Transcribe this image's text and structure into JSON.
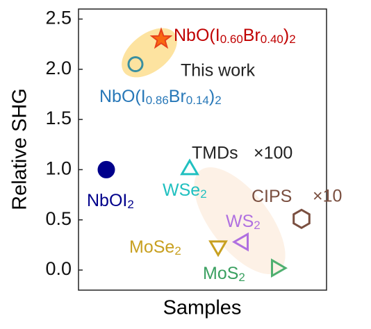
{
  "chart_data": {
    "type": "scatter",
    "ylabel": "Relative SHG",
    "xlabel": "Samples",
    "ylim": [
      -0.2,
      2.6
    ],
    "yticks": [
      {
        "value": 0,
        "label": "0.0"
      },
      {
        "value": 0.5,
        "label": "0.5"
      },
      {
        "value": 1,
        "label": "1.0"
      },
      {
        "value": 1.5,
        "label": "1.5"
      },
      {
        "value": 2,
        "label": "2.0"
      },
      {
        "value": 2.5,
        "label": "2.5"
      }
    ],
    "categories": [
      null,
      null,
      null,
      null,
      null,
      null,
      null,
      null
    ],
    "points": [
      {
        "label": [
          "NbOI",
          "2"
        ],
        "value": 1.0,
        "marker": "circle",
        "filled": true,
        "color": "#00008b",
        "label_color": "#00008b"
      },
      {
        "label": [
          "NbO(I",
          "0.86",
          "Br",
          "0.14",
          ")",
          "2"
        ],
        "value": 2.05,
        "marker": "circle",
        "filled": false,
        "color": "#3a8fa0",
        "label_color": "#2878b8"
      },
      {
        "label": [
          "NbO(I",
          "0.60",
          "Br",
          "0.40",
          ")",
          "2"
        ],
        "value": 2.3,
        "marker": "star",
        "filled": true,
        "color": "#e8401a",
        "label_color": "#c00000"
      },
      {
        "label": [
          "WSe",
          "2"
        ],
        "value": 1.0,
        "marker": "triangle-up",
        "filled": false,
        "color": "#20c0c0",
        "label_color": "#20c0c0"
      },
      {
        "label": [
          "MoSe",
          "2"
        ],
        "value": 0.24,
        "marker": "triangle-down",
        "filled": false,
        "color": "#c8a020",
        "label_color": "#c8a020"
      },
      {
        "label": [
          "WS",
          "2"
        ],
        "value": 0.28,
        "marker": "triangle-left",
        "filled": false,
        "color": "#b070e0",
        "label_color": "#b070e0"
      },
      {
        "label": [
          "MoS",
          "2"
        ],
        "value": 0.02,
        "marker": "triangle-right",
        "filled": false,
        "color": "#50b070",
        "label_color": "#3aa060"
      },
      {
        "label": [
          "CIPS"
        ],
        "value": 0.51,
        "marker": "hexagon",
        "filled": false,
        "color": "#7a4f40",
        "label_color": "#7a4f40"
      }
    ],
    "annotations": [
      {
        "text": "This work",
        "color": "#222222"
      },
      {
        "text": "TMDs",
        "color": "#222222"
      },
      {
        "text": "×100",
        "color": "#222222"
      },
      {
        "text": "×10",
        "color": "#7a4f40"
      }
    ]
  }
}
